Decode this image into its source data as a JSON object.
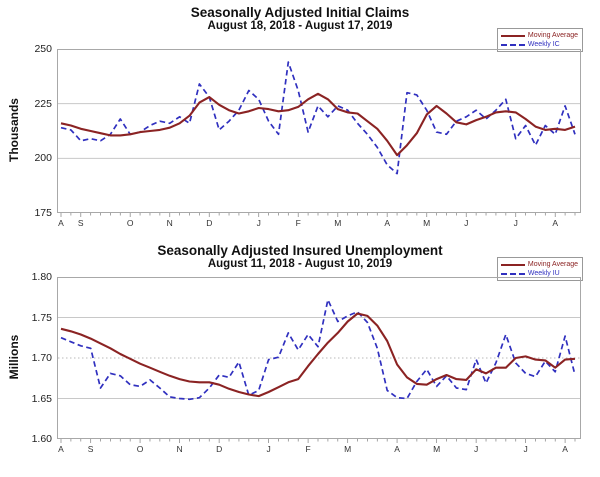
{
  "chart_data": [
    {
      "type": "line",
      "title": "Seasonally Adjusted Initial Claims",
      "subtitle": "August 18, 2018 - August 17, 2019",
      "ylabel": "Thousands",
      "ylim": [
        175,
        250
      ],
      "y_ticks": [
        "250",
        "225",
        "200",
        "175"
      ],
      "grid_solid": [
        225,
        200
      ],
      "grid_dotted": [],
      "legend_position": "top-right",
      "x_labels": [
        "A",
        "S",
        "O",
        "N",
        "D",
        "J",
        "F",
        "M",
        "A",
        "M",
        "J",
        "J",
        "A"
      ],
      "x_label_weeks": [
        0,
        2,
        7,
        11,
        15,
        20,
        24,
        28,
        33,
        37,
        41,
        46,
        50
      ],
      "series": [
        {
          "name": "Moving Average",
          "color": "#8b2323",
          "style": "solid",
          "values": [
            216,
            215,
            213.5,
            212.5,
            211.5,
            210.5,
            210.5,
            211,
            212,
            212.5,
            213,
            214,
            216,
            219.5,
            225.5,
            228,
            224.5,
            222,
            220.5,
            221.5,
            223,
            222.5,
            221.5,
            222,
            223.5,
            227,
            229.5,
            227,
            222.5,
            221,
            220.5,
            217,
            213.5,
            208,
            201.5,
            206,
            211.5,
            220,
            224,
            220.5,
            216.5,
            215.5,
            217.5,
            219,
            221,
            221.5,
            221,
            218,
            214.5,
            213,
            213.5,
            213,
            214.5
          ]
        },
        {
          "name": "Weekly IC",
          "color": "#3030bf",
          "style": "dashed",
          "values": [
            214,
            213,
            208,
            209,
            208,
            211,
            218,
            211,
            212,
            215,
            217,
            216,
            219,
            216,
            234,
            228,
            213,
            217,
            222,
            231,
            227,
            217,
            211,
            244,
            231,
            212,
            224,
            219,
            224,
            222,
            216,
            211,
            205,
            197,
            193,
            230,
            229,
            222,
            212,
            211,
            217,
            219,
            222,
            218,
            222,
            227,
            209,
            215,
            206,
            215,
            211,
            224,
            211
          ]
        }
      ]
    },
    {
      "type": "line",
      "title": "Seasonally Adjusted Insured Unemployment",
      "subtitle": "August 11, 2018 - August 10, 2019",
      "ylabel": "Millions",
      "ylim": [
        1.6,
        1.8
      ],
      "y_ticks": [
        "1.80",
        "1.75",
        "1.70",
        "1.65",
        "1.60"
      ],
      "grid_solid": [
        1.75,
        1.65
      ],
      "grid_dotted": [
        1.7
      ],
      "legend_position": "top-right",
      "x_labels": [
        "A",
        "S",
        "O",
        "N",
        "D",
        "J",
        "F",
        "M",
        "A",
        "M",
        "J",
        "J",
        "A"
      ],
      "x_label_weeks": [
        0,
        3,
        8,
        12,
        16,
        21,
        25,
        29,
        34,
        38,
        42,
        47,
        51
      ],
      "series": [
        {
          "name": "Moving Average",
          "color": "#8b2323",
          "style": "solid",
          "values": [
            1.736,
            1.733,
            1.729,
            1.724,
            1.718,
            1.712,
            1.705,
            1.699,
            1.693,
            1.688,
            1.683,
            1.678,
            1.674,
            1.671,
            1.67,
            1.67,
            1.667,
            1.662,
            1.658,
            1.655,
            1.653,
            1.658,
            1.664,
            1.67,
            1.674,
            1.69,
            1.705,
            1.719,
            1.731,
            1.745,
            1.755,
            1.752,
            1.74,
            1.721,
            1.692,
            1.676,
            1.668,
            1.667,
            1.674,
            1.679,
            1.674,
            1.673,
            1.686,
            1.681,
            1.688,
            1.688,
            1.7,
            1.702,
            1.698,
            1.697,
            1.688,
            1.698,
            1.699
          ]
        },
        {
          "name": "Weekly IU",
          "color": "#3030bf",
          "style": "dashed",
          "values": [
            1.725,
            1.72,
            1.715,
            1.712,
            1.663,
            1.681,
            1.678,
            1.667,
            1.665,
            1.673,
            1.663,
            1.652,
            1.65,
            1.649,
            1.651,
            1.663,
            1.679,
            1.676,
            1.695,
            1.654,
            1.66,
            1.698,
            1.701,
            1.731,
            1.71,
            1.729,
            1.714,
            1.772,
            1.745,
            1.752,
            1.757,
            1.744,
            1.712,
            1.66,
            1.651,
            1.65,
            1.671,
            1.686,
            1.665,
            1.678,
            1.663,
            1.661,
            1.698,
            1.669,
            1.694,
            1.729,
            1.694,
            1.681,
            1.677,
            1.696,
            1.683,
            1.727,
            1.679
          ]
        }
      ]
    }
  ]
}
